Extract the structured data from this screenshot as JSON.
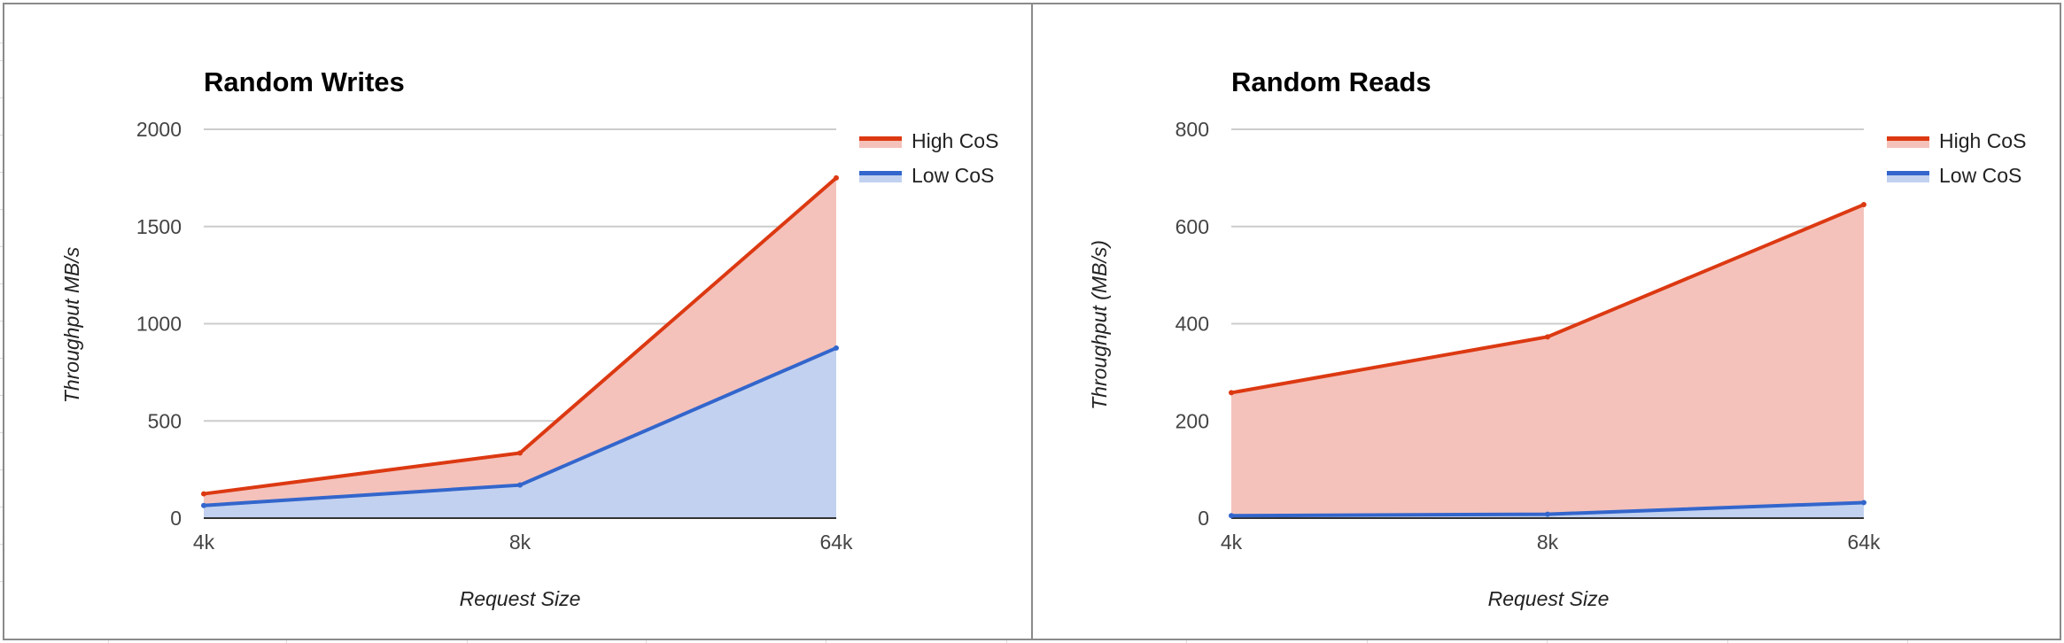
{
  "chart_data": [
    {
      "type": "area",
      "title": "Random Writes",
      "xlabel": "Request Size",
      "ylabel": "Throughput MB/s",
      "categories": [
        "4k",
        "8k",
        "64k"
      ],
      "ylim": [
        0,
        2000
      ],
      "yticks": [
        "0",
        "500",
        "1000",
        "1500",
        "2000"
      ],
      "grid": true,
      "legend_position": "right",
      "series": [
        {
          "name": "High CoS",
          "values": [
            125,
            335,
            1750
          ],
          "color": "#dc3912",
          "fill": "#f4c2bb"
        },
        {
          "name": "Low CoS",
          "values": [
            65,
            170,
            875
          ],
          "color": "#3366cc",
          "fill": "#c2d1ef"
        }
      ]
    },
    {
      "type": "area",
      "title": "Random Reads",
      "xlabel": "Request Size",
      "ylabel": "Throughput (MB/s)",
      "categories": [
        "4k",
        "8k",
        "64k"
      ],
      "ylim": [
        0,
        800
      ],
      "yticks": [
        "0",
        "200",
        "400",
        "600",
        "800"
      ],
      "grid": true,
      "legend_position": "right",
      "series": [
        {
          "name": "High CoS",
          "values": [
            258,
            373,
            645
          ],
          "color": "#dc3912",
          "fill": "#f4c2bb"
        },
        {
          "name": "Low CoS",
          "values": [
            5,
            8,
            32
          ],
          "color": "#3366cc",
          "fill": "#c2d1ef"
        }
      ]
    }
  ]
}
